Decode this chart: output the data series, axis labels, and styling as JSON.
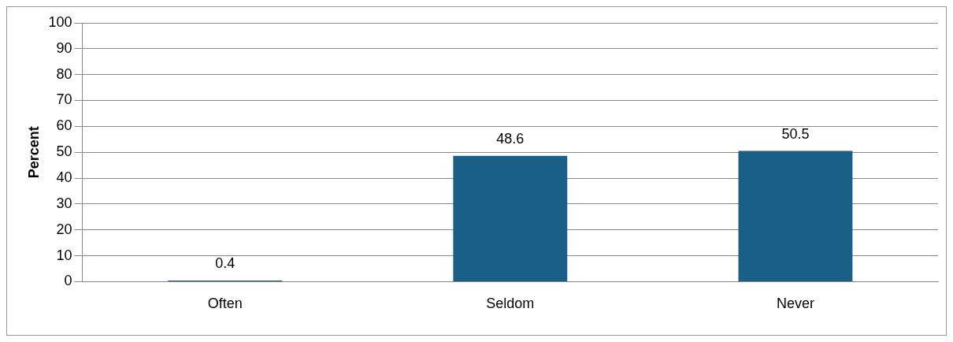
{
  "chart_data": {
    "type": "bar",
    "ylabel": "Percent",
    "categories": [
      "Often",
      "Seldom",
      "Never"
    ],
    "values": [
      0.4,
      48.6,
      50.5
    ],
    "color": "#1a5f85",
    "ylim": [
      0,
      100
    ],
    "yticks": [
      0,
      10,
      20,
      30,
      40,
      50,
      60,
      70,
      80,
      90,
      100
    ],
    "grid": "y",
    "data_labels": true,
    "legend": false
  }
}
